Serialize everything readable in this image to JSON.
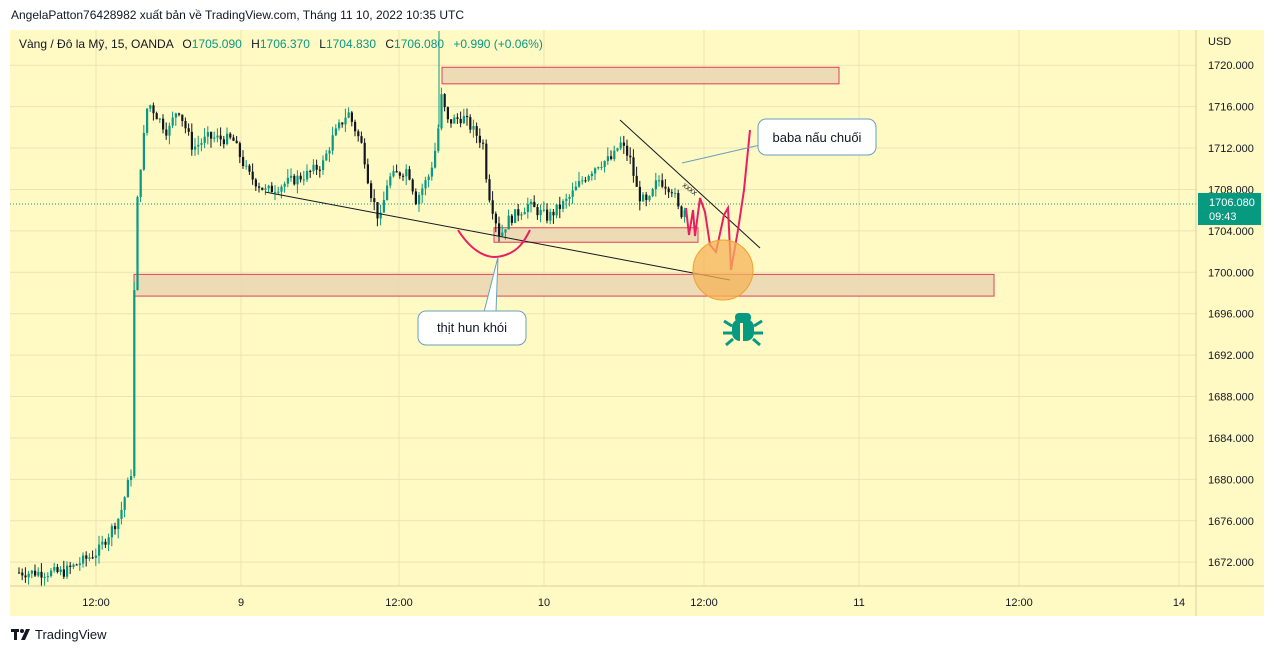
{
  "publisher": "AngelaPatton76428982 xuất bản về TradingView.com, Tháng 11 10, 2022 10:35 UTC",
  "legend": {
    "symbol": "Vàng / Đô la Mỹ, 15, OANDA",
    "open_label": "O",
    "open": "1705.090",
    "high_label": "H",
    "high": "1706.370",
    "low_label": "L",
    "low": "1704.830",
    "close_label": "C",
    "close": "1706.080",
    "change": "+0.990 (+0.06%)"
  },
  "currency": "USD",
  "price_badge": {
    "price": "1706.080",
    "countdown": "09:43"
  },
  "annotations": {
    "callout_top": "baba nấu chuối",
    "callout_bottom": "thịt hun khói",
    "xxxx_mark": "xxxx"
  },
  "branding": "TradingView",
  "colors": {
    "background": "#fff9c4",
    "up": "#089981",
    "down": "#131722",
    "zone_border": "#e0405a",
    "zone_fill": "#ead7b2",
    "drawing": "#e91e63",
    "badge": "#089981"
  },
  "chart_data": {
    "type": "candlestick",
    "title": "Vàng / Đô la Mỹ, 15, OANDA",
    "y_ticks": [
      "1672.000",
      "1676.000",
      "1680.000",
      "1684.000",
      "1688.000",
      "1692.000",
      "1696.000",
      "1700.000",
      "1704.000",
      "1708.000",
      "1712.000",
      "1716.000",
      "1720.000"
    ],
    "y_range": [
      1669.7,
      1723.4
    ],
    "x_ticks": [
      "12:00",
      "9",
      "12:00",
      "10",
      "12:00",
      "11",
      "12:00",
      "14"
    ],
    "zones": [
      {
        "price_top": 1719.8,
        "price_bottom": 1718.2
      },
      {
        "price_top": 1704.3,
        "price_bottom": 1702.9
      },
      {
        "price_top": 1699.8,
        "price_bottom": 1697.7
      }
    ],
    "grid": true,
    "last_price": 1706.08
  }
}
